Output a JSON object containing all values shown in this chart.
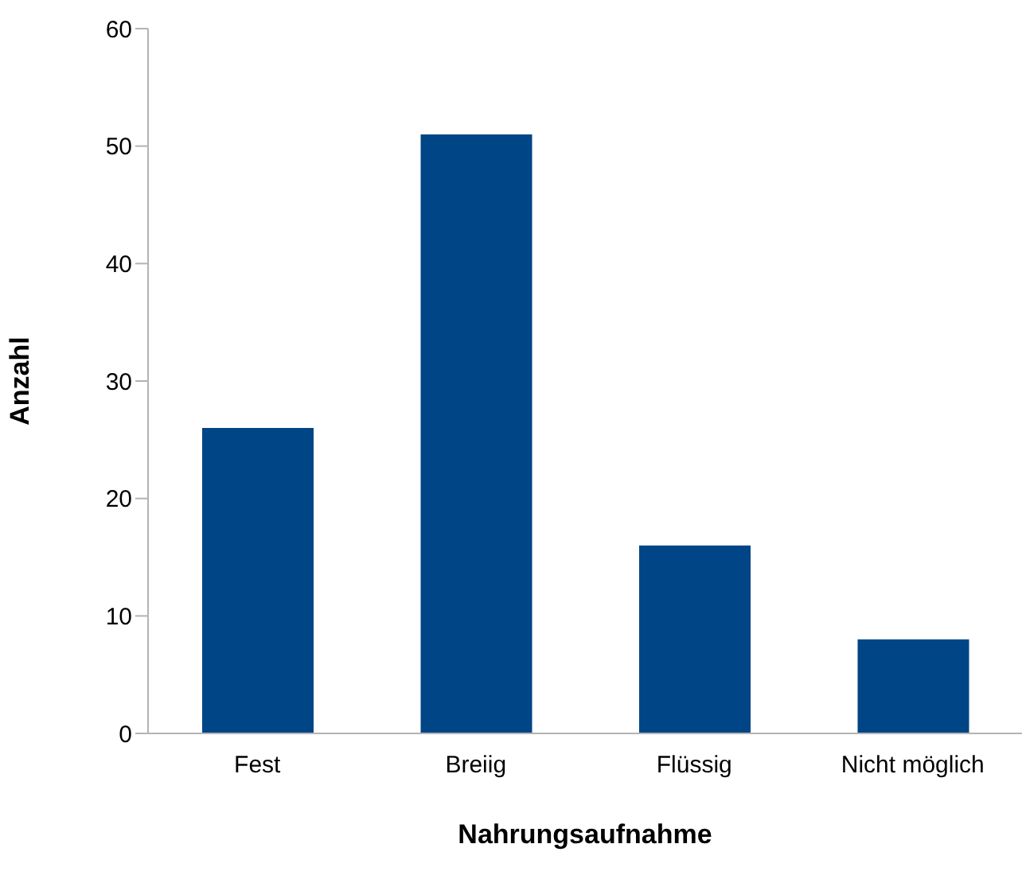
{
  "chart_data": {
    "type": "bar",
    "xlabel": "Nahrungsaufnahme",
    "ylabel": "Anzahl",
    "categories": [
      "Fest",
      "Breiig",
      "Flüssig",
      "Nicht möglich"
    ],
    "values": [
      26,
      51,
      16,
      8
    ],
    "color": "#004586",
    "ylim": [
      0,
      60
    ],
    "yticks": [
      0,
      10,
      20,
      30,
      40,
      50,
      60
    ],
    "grid": false,
    "legend": false
  }
}
